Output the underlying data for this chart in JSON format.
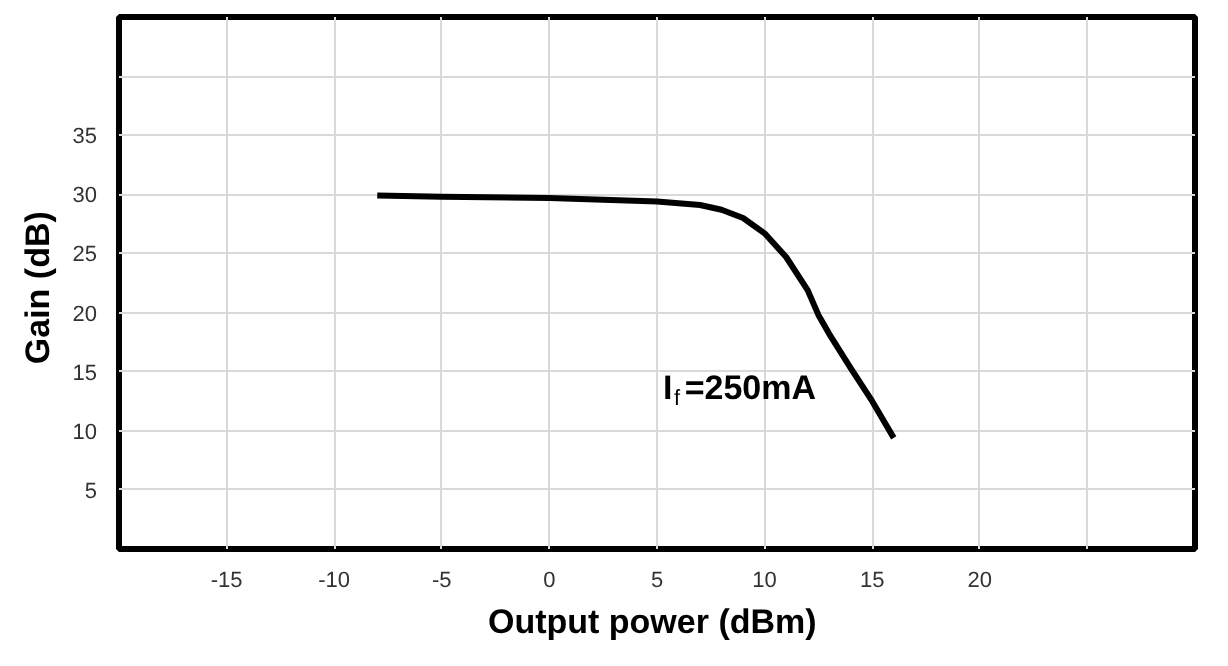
{
  "chart_data": {
    "type": "line",
    "xlabel": "Output power  (dBm)",
    "ylabel": "Gain  (dB)",
    "x": [
      -8,
      -5,
      0,
      5,
      7,
      8,
      9,
      10,
      11,
      12,
      12.5,
      13,
      14,
      15,
      16
    ],
    "series": [
      {
        "color": "#000000",
        "values": [
          29.9,
          29.8,
          29.7,
          29.4,
          29.1,
          28.7,
          28,
          26.7,
          24.7,
          21.9,
          19.8,
          18.2,
          15.3,
          12.5,
          9.4
        ]
      }
    ],
    "xlim": [
      -20,
      30
    ],
    "ylim": [
      0,
      45
    ],
    "xticks": [
      -15,
      -10,
      -5,
      0,
      5,
      10,
      15,
      20,
      {
        "value": 25,
        "label": null
      }
    ],
    "yticks": [
      5,
      10,
      15,
      20,
      25,
      30,
      35,
      {
        "value": 40,
        "label": null
      }
    ],
    "grid": true,
    "marker": "none",
    "line_style": "solid",
    "annotations": [
      "I$_{f}$=250mA"
    ]
  }
}
